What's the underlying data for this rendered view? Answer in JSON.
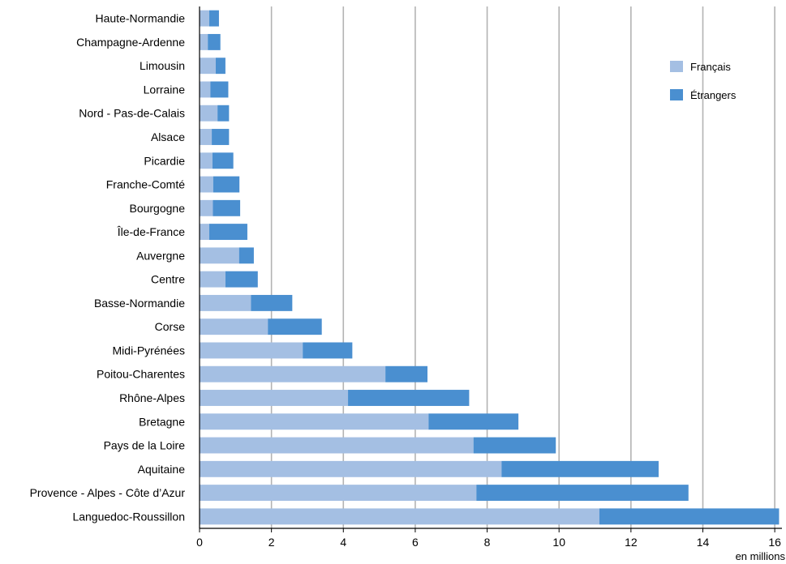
{
  "chart_data": {
    "type": "bar",
    "orientation": "horizontal",
    "stacked": true,
    "unit_label": "en millions",
    "categories": [
      "Haute-Normandie",
      "Champagne-Ardenne",
      "Limousin",
      "Lorraine",
      "Nord - Pas-de-Calais",
      "Alsace",
      "Picardie",
      "Franche-Comté",
      "Bourgogne",
      "Île-de-France",
      "Auvergne",
      "Centre",
      "Basse-Normandie",
      "Corse",
      "Midi-Pyrénées",
      "Poitou-Charentes",
      "Rhône-Alpes",
      "Bretagne",
      "Pays de la Loire",
      "Aquitaine",
      "Provence - Alpes - Côte d’Azur",
      "Languedoc-Roussillon"
    ],
    "series": [
      {
        "name": "Français",
        "color": "#a4bfe3",
        "values": [
          0.27,
          0.23,
          0.45,
          0.3,
          0.5,
          0.34,
          0.36,
          0.38,
          0.37,
          0.27,
          1.1,
          0.72,
          1.43,
          1.9,
          2.87,
          5.17,
          4.13,
          6.37,
          7.62,
          8.4,
          7.7,
          11.12
        ]
      },
      {
        "name": "Étrangers",
        "color": "#4a8fd0",
        "values": [
          0.27,
          0.35,
          0.27,
          0.5,
          0.32,
          0.48,
          0.58,
          0.73,
          0.76,
          1.06,
          0.41,
          0.9,
          1.15,
          1.5,
          1.38,
          1.17,
          3.37,
          2.5,
          2.29,
          4.37,
          5.9,
          5.0
        ]
      }
    ],
    "xlim": [
      0,
      16.2
    ],
    "xticks": [
      0,
      2,
      4,
      6,
      8,
      10,
      12,
      14,
      16
    ],
    "grid": "vertical",
    "legend": {
      "position": "top-right"
    }
  }
}
